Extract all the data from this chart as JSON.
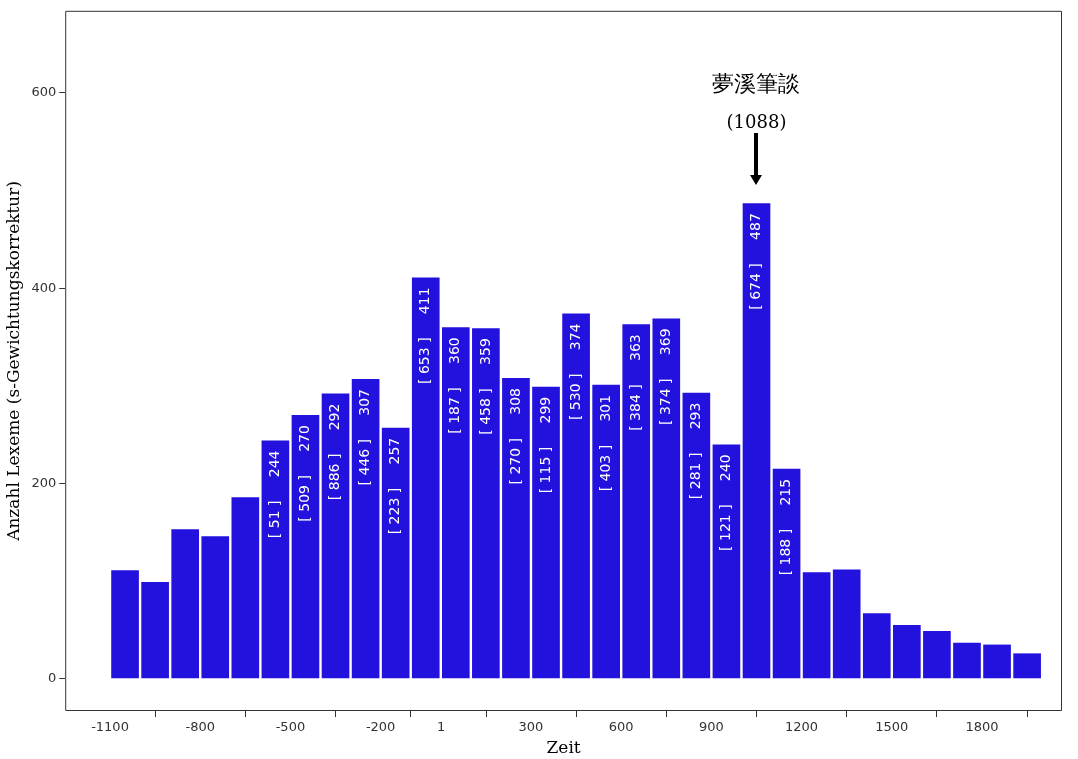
{
  "chart_data": {
    "type": "histogram",
    "xlabel": "Zeit",
    "ylabel": "Anzahl Lexeme (s-Gewichtungskorrektur)",
    "bins": [
      -1100,
      -1000,
      -900,
      -800,
      -700,
      -600,
      -500,
      -400,
      -300,
      -200,
      -100,
      0,
      100,
      200,
      300,
      400,
      500,
      600,
      700,
      800,
      900,
      1000,
      1100,
      1200,
      1300,
      1400,
      1500,
      1600,
      1700,
      1800,
      1900,
      2000
    ],
    "values": [
      111,
      99,
      153,
      146,
      186,
      244,
      270,
      292,
      307,
      257,
      411,
      360,
      359,
      308,
      299,
      374,
      301,
      363,
      369,
      293,
      240,
      487,
      215,
      109,
      112,
      67,
      55,
      49,
      37,
      35,
      26
    ],
    "value_labels": [
      null,
      null,
      null,
      null,
      null,
      "244",
      "270",
      "292",
      "307",
      "257",
      "411",
      "360",
      "359",
      "308",
      "299",
      "374",
      "301",
      "363",
      "369",
      "293",
      "240",
      "487",
      "215",
      null,
      null,
      null,
      null,
      null,
      null,
      null,
      null
    ],
    "color": "#2311dd",
    "xlim": [
      -1249,
      2066
    ],
    "ylim": [
      -33,
      684
    ],
    "xticks": [
      -1100,
      -800,
      -500,
      -200,
      1,
      300,
      600,
      900,
      1200,
      1500,
      1800
    ],
    "yticks": [
      0,
      200,
      400,
      600
    ],
    "grid": false,
    "legend": false,
    "annotations": [
      "[ 51 ]",
      "[ 509 ]",
      "[ 886 ]",
      "[ 446 ]",
      "[ 223 ]",
      "[ 653 ]",
      "[ 187 ]",
      "[ 458 ]",
      "[ 270 ]",
      "[ 115 ]",
      "[ 530 ]",
      "[ 403 ]",
      "[ 384 ]",
      "[ 374 ]",
      "[ 281 ]",
      "[ 121 ]",
      "[ 674 ]",
      "[ 188 ]",
      "夢溪筆談",
      "(1088)"
    ]
  }
}
